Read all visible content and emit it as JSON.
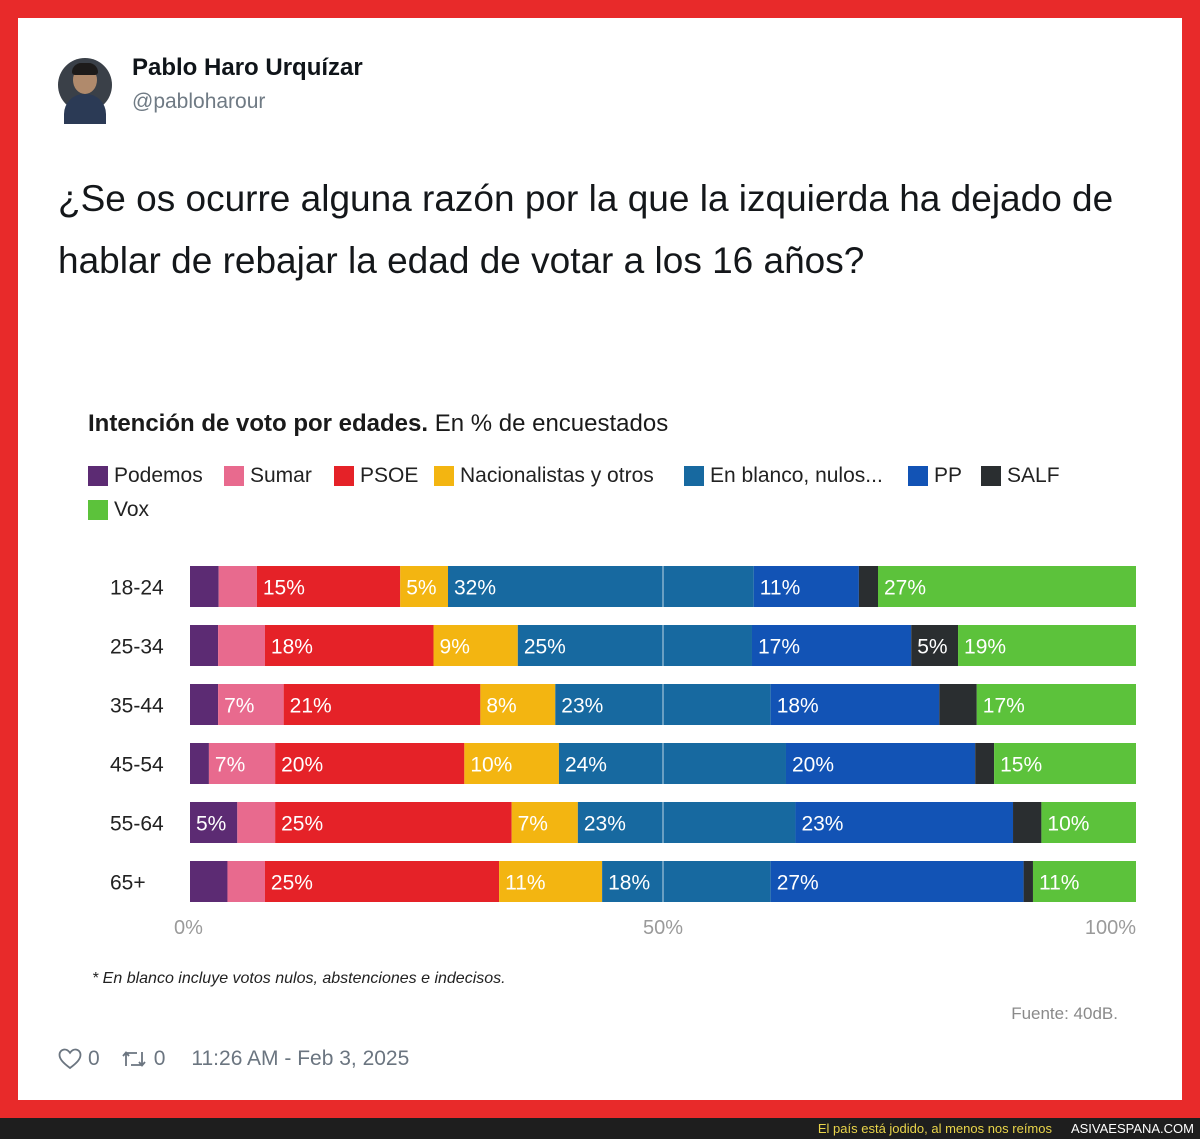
{
  "tweet": {
    "author_name": "Pablo Haro Urquízar",
    "author_handle": "@pabloharour",
    "text": "¿Se os ocurre alguna razón por la que la izquierda ha dejado de hablar de rebajar la edad de votar a los 16 años?",
    "likes": "0",
    "retweets": "0",
    "timestamp": "11:26 AM - Feb 3, 2025"
  },
  "chart_data": {
    "type": "bar",
    "stacked": true,
    "orientation": "horizontal",
    "title": "Intención de voto por edades.",
    "subtitle": "En % de encuestados",
    "categories": [
      "18-24",
      "25-34",
      "35-44",
      "45-54",
      "55-64",
      "65+"
    ],
    "xlim": [
      0,
      100
    ],
    "x_ticks": [
      "0%",
      "50%",
      "100%"
    ],
    "legend_position": "top",
    "series": [
      {
        "name": "Podemos",
        "color": "#5c2b73",
        "values": [
          3,
          3,
          3,
          2,
          5,
          4
        ]
      },
      {
        "name": "Sumar",
        "color": "#e86a8e",
        "values": [
          4,
          5,
          7,
          7,
          4,
          4
        ]
      },
      {
        "name": "PSOE",
        "color": "#e52228",
        "values": [
          15,
          18,
          21,
          20,
          25,
          25
        ]
      },
      {
        "name": "Nacionalistas y otros",
        "color": "#f3b511",
        "values": [
          5,
          9,
          8,
          10,
          7,
          11
        ]
      },
      {
        "name": "En blanco, nulos...",
        "color": "#1769a0",
        "values": [
          32,
          25,
          23,
          24,
          23,
          18
        ]
      },
      {
        "name": "PP",
        "color": "#1253b5",
        "values": [
          11,
          17,
          18,
          20,
          23,
          27
        ]
      },
      {
        "name": "SALF",
        "color": "#2a2e30",
        "values": [
          2,
          5,
          4,
          2,
          3,
          1
        ]
      },
      {
        "name": "Vox",
        "color": "#5cc23b",
        "values": [
          27,
          19,
          17,
          15,
          10,
          11
        ]
      }
    ],
    "data_labels": [
      [
        "",
        "",
        "15%",
        "5%",
        "32%",
        "11%",
        "",
        "27%"
      ],
      [
        "",
        "",
        "18%",
        "9%",
        "25%",
        "17%",
        "5%",
        "19%"
      ],
      [
        "",
        "7%",
        "21%",
        "8%",
        "23%",
        "18%",
        "",
        "17%"
      ],
      [
        "",
        "7%",
        "20%",
        "10%",
        "24%",
        "20%",
        "",
        "15%"
      ],
      [
        "5%",
        "",
        "25%",
        "7%",
        "23%",
        "23%",
        "",
        "10%"
      ],
      [
        "",
        "",
        "25%",
        "11%",
        "18%",
        "27%",
        "",
        "11%"
      ]
    ],
    "footnote": "* En blanco incluye votos nulos, abstenciones e indecisos.",
    "source": "Fuente: 40dB."
  },
  "banner": {
    "slogan": "El país está jodido, al menos nos reímos",
    "site": "ASIVAESPANA.COM"
  }
}
